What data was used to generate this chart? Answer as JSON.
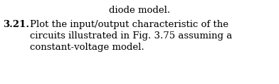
{
  "top_text": "diode model.",
  "number": "3.21.",
  "line1": "Plot the input/output characteristic of the",
  "line2": "circuits illustrated in Fig. 3.75 assuming a",
  "line3": "constant-voltage model.",
  "background_color": "#ffffff",
  "text_color": "#000000",
  "font_size": 9.5,
  "fig_width": 3.92,
  "fig_height": 1.18,
  "dpi": 100
}
